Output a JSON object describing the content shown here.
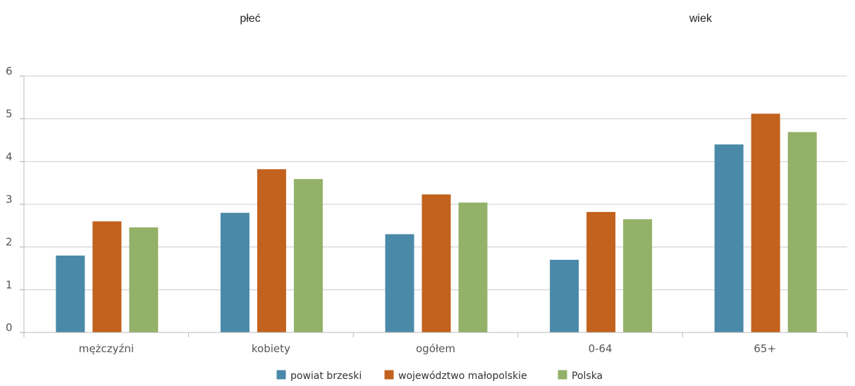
{
  "headers": {
    "sex": "płeć",
    "age": "wiek"
  },
  "chart_data": {
    "type": "bar",
    "categories": [
      "mężczyźni",
      "kobiety",
      "ogółem",
      "0-64",
      "65+"
    ],
    "series": [
      {
        "name": "powiat brzeski",
        "color": "#4a89a8",
        "values": [
          1.8,
          2.8,
          2.3,
          1.7,
          4.4
        ]
      },
      {
        "name": "województwo małopolskie",
        "color": "#c2621e",
        "values": [
          2.6,
          3.82,
          3.23,
          2.82,
          5.12
        ]
      },
      {
        "name": "Polska",
        "color": "#93b168",
        "values": [
          2.46,
          3.59,
          3.04,
          2.65,
          4.69
        ]
      }
    ],
    "ylim": [
      0,
      6
    ],
    "yticks": [
      0,
      1,
      2,
      3,
      4,
      5,
      6
    ],
    "grid": true,
    "legend": "bottom-center"
  }
}
